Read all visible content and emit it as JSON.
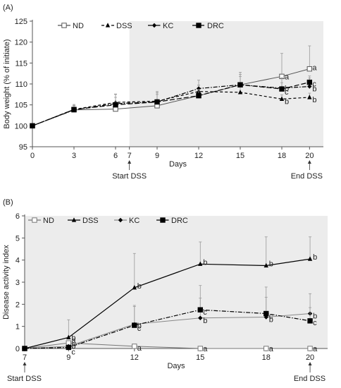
{
  "chart_data": [
    {
      "type": "line",
      "panel_label": "(A)",
      "xlabel": "Days",
      "ylabel": "Body weight (% of initiate)",
      "xlim": [
        0,
        21
      ],
      "ylim": [
        95,
        125
      ],
      "x_ticks": [
        0,
        3,
        6,
        7,
        9,
        12,
        15,
        18,
        20
      ],
      "y_ticks": [
        95,
        100,
        105,
        110,
        115,
        120,
        125
      ],
      "shaded_region": [
        7,
        21
      ],
      "annotations": [
        {
          "text": "Start DSS",
          "x": 7
        },
        {
          "text": "End DSS",
          "x": 20
        }
      ],
      "legend": [
        "ND",
        "DSS",
        "KC",
        "DRC"
      ],
      "legend_position": "top-left",
      "x": [
        0,
        3,
        6,
        9,
        12,
        15,
        18,
        20
      ],
      "series": [
        {
          "name": "ND",
          "marker": "open-square",
          "line": "solid",
          "color": "#555555",
          "values": [
            100,
            103.8,
            104.0,
            104.8,
            107.2,
            109.8,
            111.8,
            113.6
          ],
          "errors": [
            0,
            1.0,
            1.2,
            1.5,
            2.5,
            3.0,
            5.5,
            5.5
          ]
        },
        {
          "name": "DSS",
          "marker": "triangle",
          "line": "dashed",
          "color": "#000000",
          "values": [
            100,
            103.9,
            105.6,
            105.9,
            108.2,
            108.0,
            106.4,
            106.8
          ],
          "errors": [
            0,
            1.2,
            2.0,
            2.0,
            1.5,
            1.5,
            1.0,
            1.0
          ]
        },
        {
          "name": "KC",
          "marker": "diamond",
          "line": "dash-dot",
          "color": "#000000",
          "values": [
            100,
            103.8,
            105.3,
            105.7,
            108.9,
            109.8,
            109.0,
            109.4
          ],
          "errors": [
            0,
            1.0,
            1.5,
            1.8,
            2.0,
            2.5,
            2.5,
            2.0
          ]
        },
        {
          "name": "DRC",
          "marker": "filled-square",
          "line": "long-dash",
          "color": "#000000",
          "values": [
            100,
            103.9,
            105.0,
            105.7,
            107.2,
            109.8,
            108.8,
            110.4
          ],
          "errors": [
            0,
            1.0,
            2.5,
            2.5,
            1.5,
            2.0,
            1.5,
            1.5
          ]
        }
      ],
      "significance_labels": [
        {
          "x": 18,
          "labels": [
            "a",
            "b",
            "b",
            "c"
          ]
        },
        {
          "x": 20,
          "labels": [
            "a",
            "b",
            "b",
            "c"
          ]
        }
      ]
    },
    {
      "type": "line",
      "panel_label": "(B)",
      "xlabel": "Days",
      "ylabel": "Disease activity index",
      "xlim": [
        7,
        20.8
      ],
      "ylim": [
        0,
        6
      ],
      "x_ticks": [
        7,
        9,
        12,
        15,
        18,
        20
      ],
      "y_ticks": [
        0,
        1,
        2,
        3,
        4,
        5,
        6
      ],
      "shaded_region": [
        7,
        20.8
      ],
      "annotations": [
        {
          "text": "Start DSS",
          "x": 7
        },
        {
          "text": "End DSS",
          "x": 20
        }
      ],
      "legend": [
        "ND",
        "DSS",
        "KC",
        "DRC"
      ],
      "legend_position": "top-left",
      "x": [
        7,
        9,
        12,
        15,
        18,
        20
      ],
      "series": [
        {
          "name": "ND",
          "marker": "open-square",
          "line": "solid",
          "color": "#777777",
          "values": [
            0,
            0.25,
            0.1,
            0,
            0,
            0
          ],
          "errors": [
            0,
            0,
            0,
            0,
            0,
            0
          ]
        },
        {
          "name": "DSS",
          "marker": "triangle",
          "line": "solid",
          "color": "#000000",
          "values": [
            0,
            0.5,
            2.75,
            3.82,
            3.75,
            4.05
          ],
          "errors": [
            0,
            0.8,
            1.55,
            1.0,
            1.3,
            1.0
          ]
        },
        {
          "name": "KC",
          "marker": "diamond",
          "line": "solid",
          "color": "#888888",
          "values": [
            0,
            0.1,
            1.1,
            1.38,
            1.42,
            1.58
          ],
          "errors": [
            0,
            0,
            0.8,
            0.9,
            0.9,
            0.9
          ]
        },
        {
          "name": "DRC",
          "marker": "filled-square",
          "line": "dash-dot",
          "color": "#000000",
          "values": [
            0,
            0.05,
            1.05,
            1.75,
            1.58,
            1.25
          ],
          "errors": [
            0,
            0,
            0.9,
            1.1,
            1.2,
            0.6
          ]
        }
      ],
      "significance_labels": [
        {
          "x": 9,
          "labels": [
            "a",
            "b",
            "b",
            "c"
          ]
        },
        {
          "x": 12,
          "labels": [
            "a",
            "b",
            "b",
            "c"
          ]
        },
        {
          "x": 15,
          "labels": [
            "a",
            "b",
            "b",
            "c"
          ]
        },
        {
          "x": 18,
          "labels": [
            "a",
            "b",
            "b",
            "c"
          ]
        },
        {
          "x": 20,
          "labels": [
            "a",
            "b",
            "b",
            "c"
          ]
        }
      ]
    }
  ]
}
